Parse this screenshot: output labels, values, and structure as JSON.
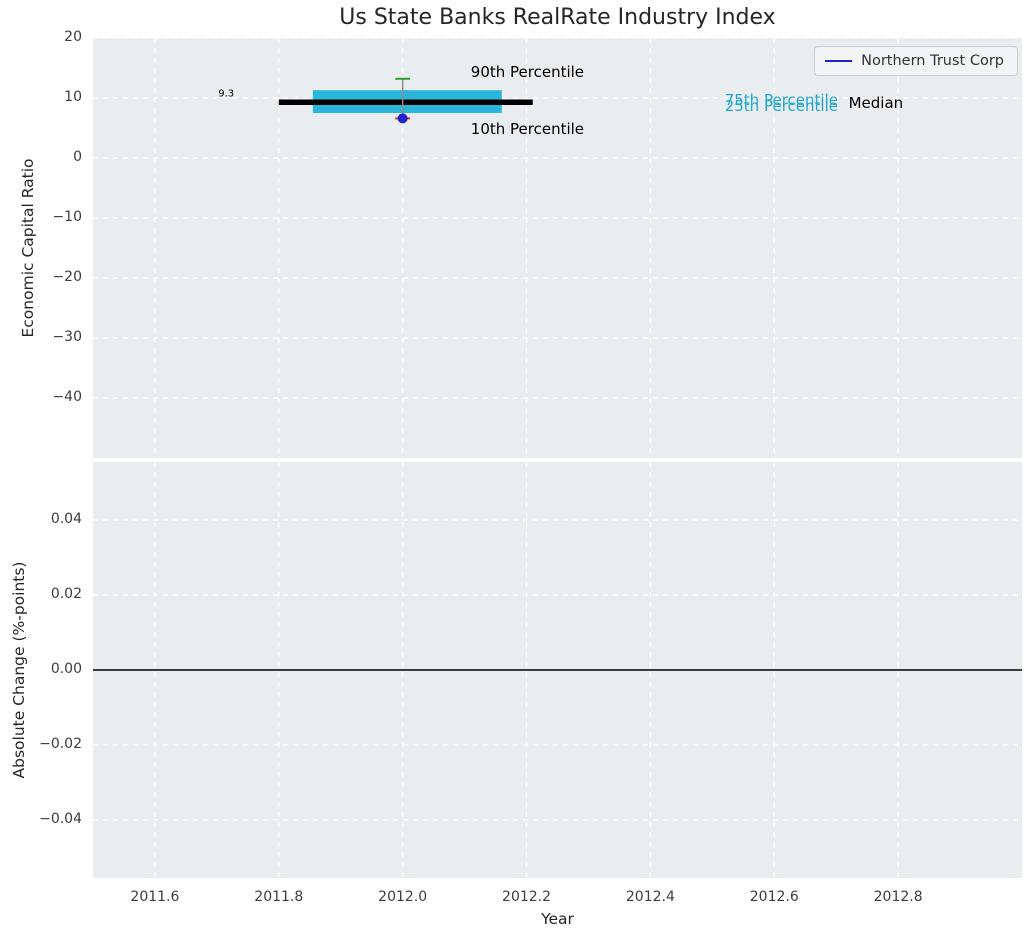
{
  "title": "Us State Banks RealRate Industry Index",
  "colors": {
    "figure_bg": "#ffffff",
    "axes_bg": "#eaedf0",
    "grid": "#ffffff",
    "median": "#000000",
    "iqr_band": "#2ab5da",
    "whisker": "#8f8f8f",
    "p90_cap": "#2ca02c",
    "p10_cap": "#d62728",
    "company_marker": "#2222cc",
    "legend_line": "#2222cc",
    "zero_line": "#000000"
  },
  "chart_data": [
    {
      "type": "scatter",
      "style": "percentile-box-summary",
      "title": "Us State Banks RealRate Industry Index",
      "xlabel": "",
      "ylabel": "Economic Capital Ratio",
      "xlim": [
        2011.5,
        2013.0
      ],
      "ylim": [
        -50,
        20
      ],
      "xticks": [
        2011.6,
        2011.8,
        2012.0,
        2012.2,
        2012.4,
        2012.6,
        2012.8
      ],
      "yticks": [
        20,
        10,
        0,
        -10,
        -20,
        -30,
        -40
      ],
      "grid": "white dashed",
      "legend": {
        "position": "upper right",
        "entries": [
          {
            "label": "Northern Trust Corp",
            "color": "#2222cc"
          }
        ]
      },
      "percentiles": {
        "p10": 6.6,
        "p25": 7.5,
        "median": 9.3,
        "p75": 11.3,
        "p90": 13.2
      },
      "company_series": {
        "name": "Northern Trust Corp",
        "x": [
          2012.0
        ],
        "y": [
          6.6
        ]
      },
      "median_label": "9.3",
      "median_span_x": [
        2011.8,
        2012.21
      ],
      "band_span_x": [
        2011.855,
        2012.16
      ],
      "cap_halfwidth_x": 0.012,
      "annotations": [
        {
          "text": "9.3",
          "x": 2011.715,
          "y": 10.7,
          "color": "#000000",
          "size": "small",
          "align": "center"
        },
        {
          "text": "90th Percentile",
          "x": 2012.11,
          "y": 14.3,
          "color": "#000000",
          "size": "normal",
          "align": "left"
        },
        {
          "text": "10th Percentile",
          "x": 2012.11,
          "y": 4.9,
          "color": "#000000",
          "size": "normal",
          "align": "left"
        },
        {
          "text": "75th Percentile",
          "x": 2012.52,
          "y": 9.7,
          "color": "#1fa8cc",
          "size": "normal",
          "align": "left"
        },
        {
          "text": "25th Percentile",
          "x": 2012.52,
          "y": 8.7,
          "color": "#1fa8cc",
          "size": "normal",
          "align": "left"
        },
        {
          "text": "Median",
          "x": 2012.72,
          "y": 9.2,
          "color": "#000000",
          "size": "normal",
          "align": "left"
        }
      ]
    },
    {
      "type": "line",
      "title": "",
      "xlabel": "Year",
      "ylabel": "Absolute Change (%-points)",
      "xlim": [
        2011.5,
        2013.0
      ],
      "ylim": [
        -0.0555,
        0.0555
      ],
      "xticks": [
        2011.6,
        2011.8,
        2012.0,
        2012.2,
        2012.4,
        2012.6,
        2012.8
      ],
      "yticks": [
        0.04,
        0.02,
        0.0,
        -0.02,
        -0.04
      ],
      "grid": "white dashed",
      "zero_line": 0.0,
      "series": []
    }
  ]
}
